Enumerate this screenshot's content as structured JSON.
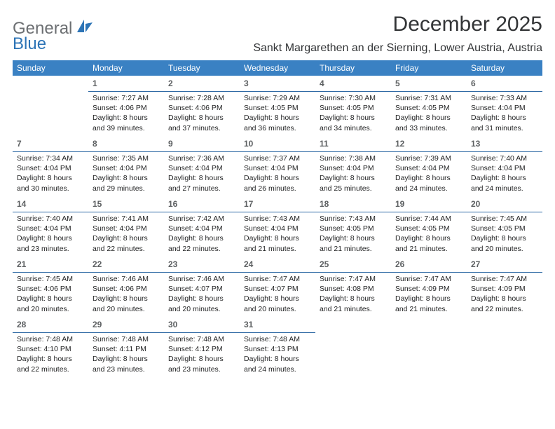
{
  "brand": {
    "general": "General",
    "blue": "Blue"
  },
  "title": "December 2025",
  "location": "Sankt Margarethen an der Sierning, Lower Austria, Austria",
  "colors": {
    "header_bg": "#3a81c3",
    "header_text": "#ffffff",
    "rule": "#2f6aa5",
    "logo_blue": "#2d74b6",
    "logo_gray": "#6c6f72",
    "body_text": "#232425",
    "daynum": "#5d6062",
    "background": "#ffffff"
  },
  "font": {
    "daynum_size": 12,
    "info_size": 10.5,
    "title_size": 30,
    "location_size": 16,
    "header_size": 12
  },
  "weekdays": [
    "Sunday",
    "Monday",
    "Tuesday",
    "Wednesday",
    "Thursday",
    "Friday",
    "Saturday"
  ],
  "grid": [
    [
      null,
      {
        "n": "1",
        "sr": "Sunrise: 7:27 AM",
        "ss": "Sunset: 4:06 PM",
        "d1": "Daylight: 8 hours",
        "d2": "and 39 minutes."
      },
      {
        "n": "2",
        "sr": "Sunrise: 7:28 AM",
        "ss": "Sunset: 4:06 PM",
        "d1": "Daylight: 8 hours",
        "d2": "and 37 minutes."
      },
      {
        "n": "3",
        "sr": "Sunrise: 7:29 AM",
        "ss": "Sunset: 4:05 PM",
        "d1": "Daylight: 8 hours",
        "d2": "and 36 minutes."
      },
      {
        "n": "4",
        "sr": "Sunrise: 7:30 AM",
        "ss": "Sunset: 4:05 PM",
        "d1": "Daylight: 8 hours",
        "d2": "and 34 minutes."
      },
      {
        "n": "5",
        "sr": "Sunrise: 7:31 AM",
        "ss": "Sunset: 4:05 PM",
        "d1": "Daylight: 8 hours",
        "d2": "and 33 minutes."
      },
      {
        "n": "6",
        "sr": "Sunrise: 7:33 AM",
        "ss": "Sunset: 4:04 PM",
        "d1": "Daylight: 8 hours",
        "d2": "and 31 minutes."
      }
    ],
    [
      {
        "n": "7",
        "sr": "Sunrise: 7:34 AM",
        "ss": "Sunset: 4:04 PM",
        "d1": "Daylight: 8 hours",
        "d2": "and 30 minutes."
      },
      {
        "n": "8",
        "sr": "Sunrise: 7:35 AM",
        "ss": "Sunset: 4:04 PM",
        "d1": "Daylight: 8 hours",
        "d2": "and 29 minutes."
      },
      {
        "n": "9",
        "sr": "Sunrise: 7:36 AM",
        "ss": "Sunset: 4:04 PM",
        "d1": "Daylight: 8 hours",
        "d2": "and 27 minutes."
      },
      {
        "n": "10",
        "sr": "Sunrise: 7:37 AM",
        "ss": "Sunset: 4:04 PM",
        "d1": "Daylight: 8 hours",
        "d2": "and 26 minutes."
      },
      {
        "n": "11",
        "sr": "Sunrise: 7:38 AM",
        "ss": "Sunset: 4:04 PM",
        "d1": "Daylight: 8 hours",
        "d2": "and 25 minutes."
      },
      {
        "n": "12",
        "sr": "Sunrise: 7:39 AM",
        "ss": "Sunset: 4:04 PM",
        "d1": "Daylight: 8 hours",
        "d2": "and 24 minutes."
      },
      {
        "n": "13",
        "sr": "Sunrise: 7:40 AM",
        "ss": "Sunset: 4:04 PM",
        "d1": "Daylight: 8 hours",
        "d2": "and 24 minutes."
      }
    ],
    [
      {
        "n": "14",
        "sr": "Sunrise: 7:40 AM",
        "ss": "Sunset: 4:04 PM",
        "d1": "Daylight: 8 hours",
        "d2": "and 23 minutes."
      },
      {
        "n": "15",
        "sr": "Sunrise: 7:41 AM",
        "ss": "Sunset: 4:04 PM",
        "d1": "Daylight: 8 hours",
        "d2": "and 22 minutes."
      },
      {
        "n": "16",
        "sr": "Sunrise: 7:42 AM",
        "ss": "Sunset: 4:04 PM",
        "d1": "Daylight: 8 hours",
        "d2": "and 22 minutes."
      },
      {
        "n": "17",
        "sr": "Sunrise: 7:43 AM",
        "ss": "Sunset: 4:04 PM",
        "d1": "Daylight: 8 hours",
        "d2": "and 21 minutes."
      },
      {
        "n": "18",
        "sr": "Sunrise: 7:43 AM",
        "ss": "Sunset: 4:05 PM",
        "d1": "Daylight: 8 hours",
        "d2": "and 21 minutes."
      },
      {
        "n": "19",
        "sr": "Sunrise: 7:44 AM",
        "ss": "Sunset: 4:05 PM",
        "d1": "Daylight: 8 hours",
        "d2": "and 21 minutes."
      },
      {
        "n": "20",
        "sr": "Sunrise: 7:45 AM",
        "ss": "Sunset: 4:05 PM",
        "d1": "Daylight: 8 hours",
        "d2": "and 20 minutes."
      }
    ],
    [
      {
        "n": "21",
        "sr": "Sunrise: 7:45 AM",
        "ss": "Sunset: 4:06 PM",
        "d1": "Daylight: 8 hours",
        "d2": "and 20 minutes."
      },
      {
        "n": "22",
        "sr": "Sunrise: 7:46 AM",
        "ss": "Sunset: 4:06 PM",
        "d1": "Daylight: 8 hours",
        "d2": "and 20 minutes."
      },
      {
        "n": "23",
        "sr": "Sunrise: 7:46 AM",
        "ss": "Sunset: 4:07 PM",
        "d1": "Daylight: 8 hours",
        "d2": "and 20 minutes."
      },
      {
        "n": "24",
        "sr": "Sunrise: 7:47 AM",
        "ss": "Sunset: 4:07 PM",
        "d1": "Daylight: 8 hours",
        "d2": "and 20 minutes."
      },
      {
        "n": "25",
        "sr": "Sunrise: 7:47 AM",
        "ss": "Sunset: 4:08 PM",
        "d1": "Daylight: 8 hours",
        "d2": "and 21 minutes."
      },
      {
        "n": "26",
        "sr": "Sunrise: 7:47 AM",
        "ss": "Sunset: 4:09 PM",
        "d1": "Daylight: 8 hours",
        "d2": "and 21 minutes."
      },
      {
        "n": "27",
        "sr": "Sunrise: 7:47 AM",
        "ss": "Sunset: 4:09 PM",
        "d1": "Daylight: 8 hours",
        "d2": "and 22 minutes."
      }
    ],
    [
      {
        "n": "28",
        "sr": "Sunrise: 7:48 AM",
        "ss": "Sunset: 4:10 PM",
        "d1": "Daylight: 8 hours",
        "d2": "and 22 minutes."
      },
      {
        "n": "29",
        "sr": "Sunrise: 7:48 AM",
        "ss": "Sunset: 4:11 PM",
        "d1": "Daylight: 8 hours",
        "d2": "and 23 minutes."
      },
      {
        "n": "30",
        "sr": "Sunrise: 7:48 AM",
        "ss": "Sunset: 4:12 PM",
        "d1": "Daylight: 8 hours",
        "d2": "and 23 minutes."
      },
      {
        "n": "31",
        "sr": "Sunrise: 7:48 AM",
        "ss": "Sunset: 4:13 PM",
        "d1": "Daylight: 8 hours",
        "d2": "and 24 minutes."
      },
      null,
      null,
      null
    ]
  ]
}
